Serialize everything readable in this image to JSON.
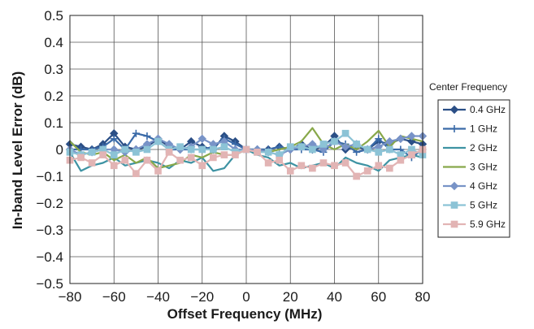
{
  "chart_data": {
    "type": "line",
    "title": "",
    "xlabel": "Offset Frequency (MHz)",
    "ylabel": "In-band Level Error (dB)",
    "xlim": [
      -80,
      80
    ],
    "ylim": [
      -0.5,
      0.5
    ],
    "xticks": [
      -80,
      -60,
      -40,
      -20,
      0,
      20,
      40,
      60,
      80
    ],
    "yticks": [
      0.5,
      0.4,
      0.3,
      0.2,
      0.1,
      0,
      -0.1,
      -0.2,
      -0.3,
      -0.4,
      -0.5
    ],
    "xtick_labels": [
      "−80",
      "−60",
      "−40",
      "−20",
      "0",
      "20",
      "40",
      "60",
      "80"
    ],
    "ytick_labels": [
      "0.5",
      "0.4",
      "0.3",
      "0.2",
      "0.1",
      "0",
      "−0.1",
      "−0.2",
      "−0.3",
      "−0.4",
      "−0.5"
    ],
    "grid": true,
    "legend": {
      "title": "Center Frequency",
      "placement": "right"
    },
    "x": [
      -80,
      -75,
      -70,
      -65,
      -60,
      -55,
      -50,
      -45,
      -40,
      -35,
      -30,
      -25,
      -20,
      -15,
      -10,
      -5,
      0,
      5,
      10,
      15,
      20,
      25,
      30,
      35,
      40,
      45,
      50,
      55,
      60,
      65,
      70,
      75,
      80
    ],
    "series": [
      {
        "name": "0.4 GHz",
        "color": "#2b4f86",
        "marker": "diamond",
        "values": [
          0.02,
          0.01,
          0.0,
          0.02,
          0.06,
          0.01,
          0.0,
          0.01,
          0.04,
          0.01,
          0.0,
          0.03,
          0.01,
          0.0,
          0.05,
          0.03,
          0.0,
          0.0,
          0.0,
          0.01,
          0.0,
          0.02,
          0.0,
          0.01,
          0.05,
          0.0,
          0.01,
          0.0,
          0.03,
          0.02,
          0.04,
          0.03,
          0.02
        ]
      },
      {
        "name": "1 GHz",
        "color": "#3a6aa8",
        "marker": "plus",
        "values": [
          0.0,
          0.0,
          0.0,
          0.01,
          0.04,
          0.0,
          0.06,
          0.05,
          0.03,
          0.0,
          0.0,
          0.0,
          0.0,
          0.01,
          0.04,
          0.02,
          0.0,
          0.0,
          0.0,
          0.01,
          0.0,
          0.0,
          0.0,
          -0.01,
          0.03,
          0.02,
          -0.01,
          0.0,
          0.04,
          0.0,
          0.0,
          -0.03,
          0.0
        ]
      },
      {
        "name": "2 GHz",
        "color": "#3e93a3",
        "marker": "none",
        "values": [
          -0.01,
          -0.08,
          -0.06,
          -0.05,
          -0.03,
          -0.06,
          -0.05,
          -0.04,
          -0.05,
          -0.07,
          -0.04,
          -0.05,
          -0.03,
          -0.08,
          -0.07,
          -0.02,
          0.0,
          -0.02,
          -0.03,
          -0.06,
          -0.05,
          -0.07,
          -0.06,
          -0.05,
          -0.07,
          -0.03,
          -0.05,
          -0.06,
          -0.08,
          -0.04,
          -0.03,
          -0.02,
          -0.03
        ]
      },
      {
        "name": "3 GHz",
        "color": "#88a84a",
        "marker": "none",
        "values": [
          0.03,
          -0.01,
          -0.02,
          -0.01,
          -0.04,
          -0.02,
          -0.05,
          -0.03,
          -0.07,
          -0.06,
          -0.05,
          -0.02,
          -0.03,
          -0.01,
          -0.02,
          -0.02,
          0.0,
          0.0,
          -0.01,
          0.0,
          0.01,
          0.03,
          0.08,
          0.02,
          0.0,
          0.02,
          0.0,
          0.03,
          0.07,
          0.01,
          0.05,
          0.04,
          0.03
        ]
      },
      {
        "name": "4 GHz",
        "color": "#7893c7",
        "marker": "diamond",
        "values": [
          0.0,
          -0.02,
          -0.01,
          0.0,
          0.0,
          -0.01,
          0.0,
          0.02,
          0.04,
          0.02,
          0.0,
          0.01,
          0.04,
          0.02,
          0.03,
          0.0,
          0.0,
          0.0,
          -0.01,
          -0.02,
          0.0,
          0.01,
          0.02,
          0.0,
          0.03,
          0.01,
          0.02,
          0.0,
          0.01,
          0.03,
          0.04,
          0.05,
          0.05
        ]
      },
      {
        "name": "5 GHz",
        "color": "#8cc3d6",
        "marker": "square",
        "values": [
          -0.01,
          -0.02,
          -0.01,
          0.0,
          -0.02,
          0.0,
          -0.01,
          0.0,
          0.03,
          0.0,
          0.01,
          0.0,
          0.0,
          0.0,
          0.01,
          -0.01,
          0.0,
          -0.01,
          -0.01,
          -0.02,
          0.01,
          0.01,
          0.0,
          0.02,
          0.03,
          0.06,
          0.02,
          0.0,
          -0.01,
          0.0,
          -0.02,
          0.0,
          -0.02
        ]
      },
      {
        "name": "5.9 GHz",
        "color": "#e2b4b4",
        "marker": "square",
        "values": [
          -0.04,
          -0.03,
          -0.05,
          -0.02,
          -0.06,
          -0.04,
          -0.09,
          -0.04,
          -0.08,
          -0.01,
          -0.04,
          -0.03,
          -0.06,
          -0.03,
          -0.02,
          -0.02,
          0.0,
          -0.01,
          -0.05,
          -0.04,
          -0.08,
          -0.06,
          -0.07,
          -0.05,
          -0.06,
          -0.05,
          -0.1,
          -0.08,
          -0.06,
          -0.07,
          -0.04,
          -0.02,
          0.0
        ]
      }
    ]
  }
}
